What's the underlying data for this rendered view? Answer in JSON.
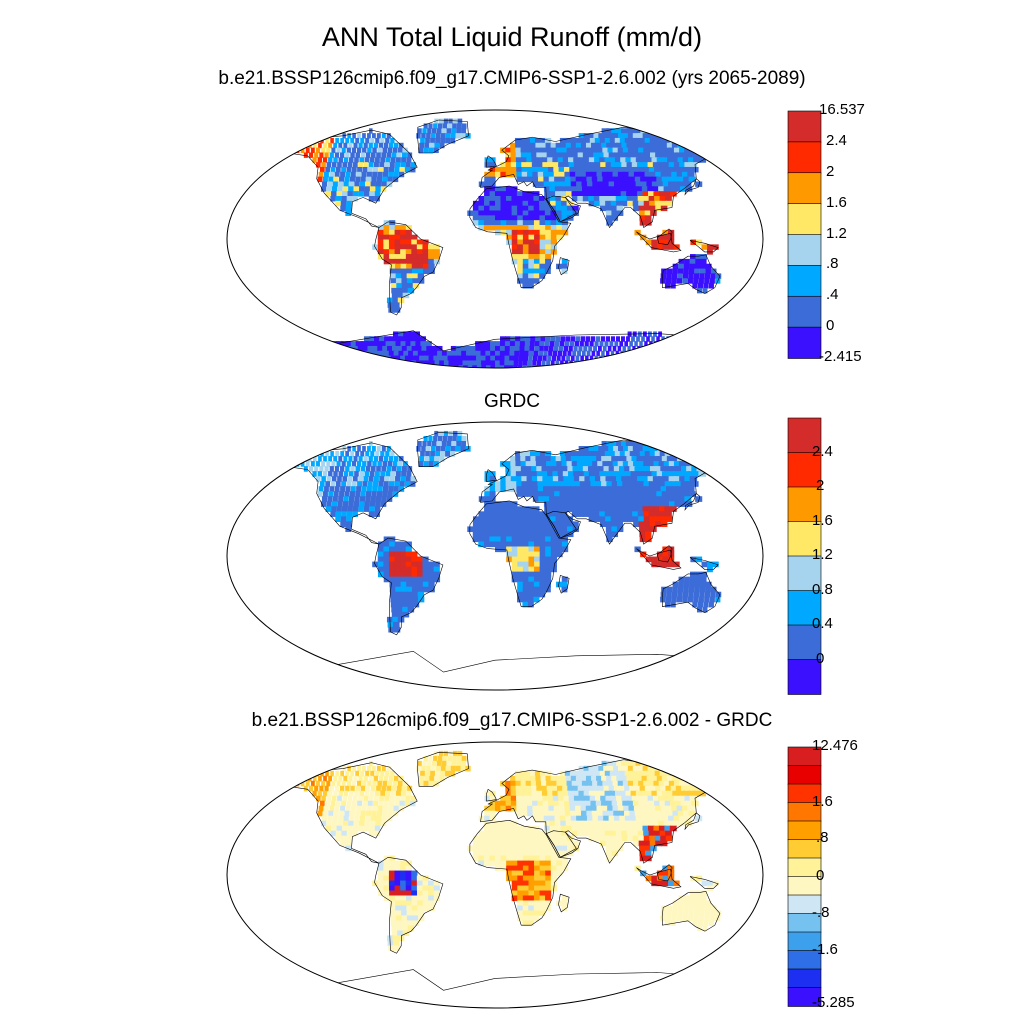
{
  "title": "ANN Total Liquid Runoff (mm/d)",
  "panels": [
    {
      "title": "b.e21.BSSP126cmip6.f09_g17.CMIP6-SSP1-2.6.002 (yrs 2065-2089)",
      "colorbar": {
        "labels": [
          "16.537",
          "2.4",
          "2",
          "1.6",
          "1.2",
          ".8",
          ".4",
          "0",
          "-2.415"
        ],
        "colors": [
          "#d42b2b",
          "#ff2a00",
          "#ff9900",
          "#ffe866",
          "#a6d4ee",
          "#00a9ff",
          "#3c6cd8",
          "#3a10ff"
        ]
      }
    },
    {
      "title": "GRDC",
      "colorbar": {
        "labels": [
          "2.4",
          "2",
          "1.6",
          "1.2",
          "0.8",
          "0.4",
          "0"
        ],
        "colors": [
          "#d42b2b",
          "#ff2a00",
          "#ff9900",
          "#ffe866",
          "#a6d4ee",
          "#00a9ff",
          "#3c6cd8",
          "#3a10ff"
        ]
      }
    },
    {
      "title": "b.e21.BSSP126cmip6.f09_g17.CMIP6-SSP1-2.6.002 - GRDC",
      "colorbar": {
        "labels": [
          "12.476",
          "1.6",
          ".8",
          "0",
          "-.8",
          "-1.6",
          "-5.285"
        ],
        "colors": [
          "#d81e1e",
          "#e80000",
          "#ff3300",
          "#ff7700",
          "#ffa000",
          "#ffcc33",
          "#fff299",
          "#fff7c2",
          "#cfe6f5",
          "#75c1ef",
          "#3ca0ec",
          "#2e6ee6",
          "#1d2ff0",
          "#3a10ff"
        ]
      }
    }
  ]
}
